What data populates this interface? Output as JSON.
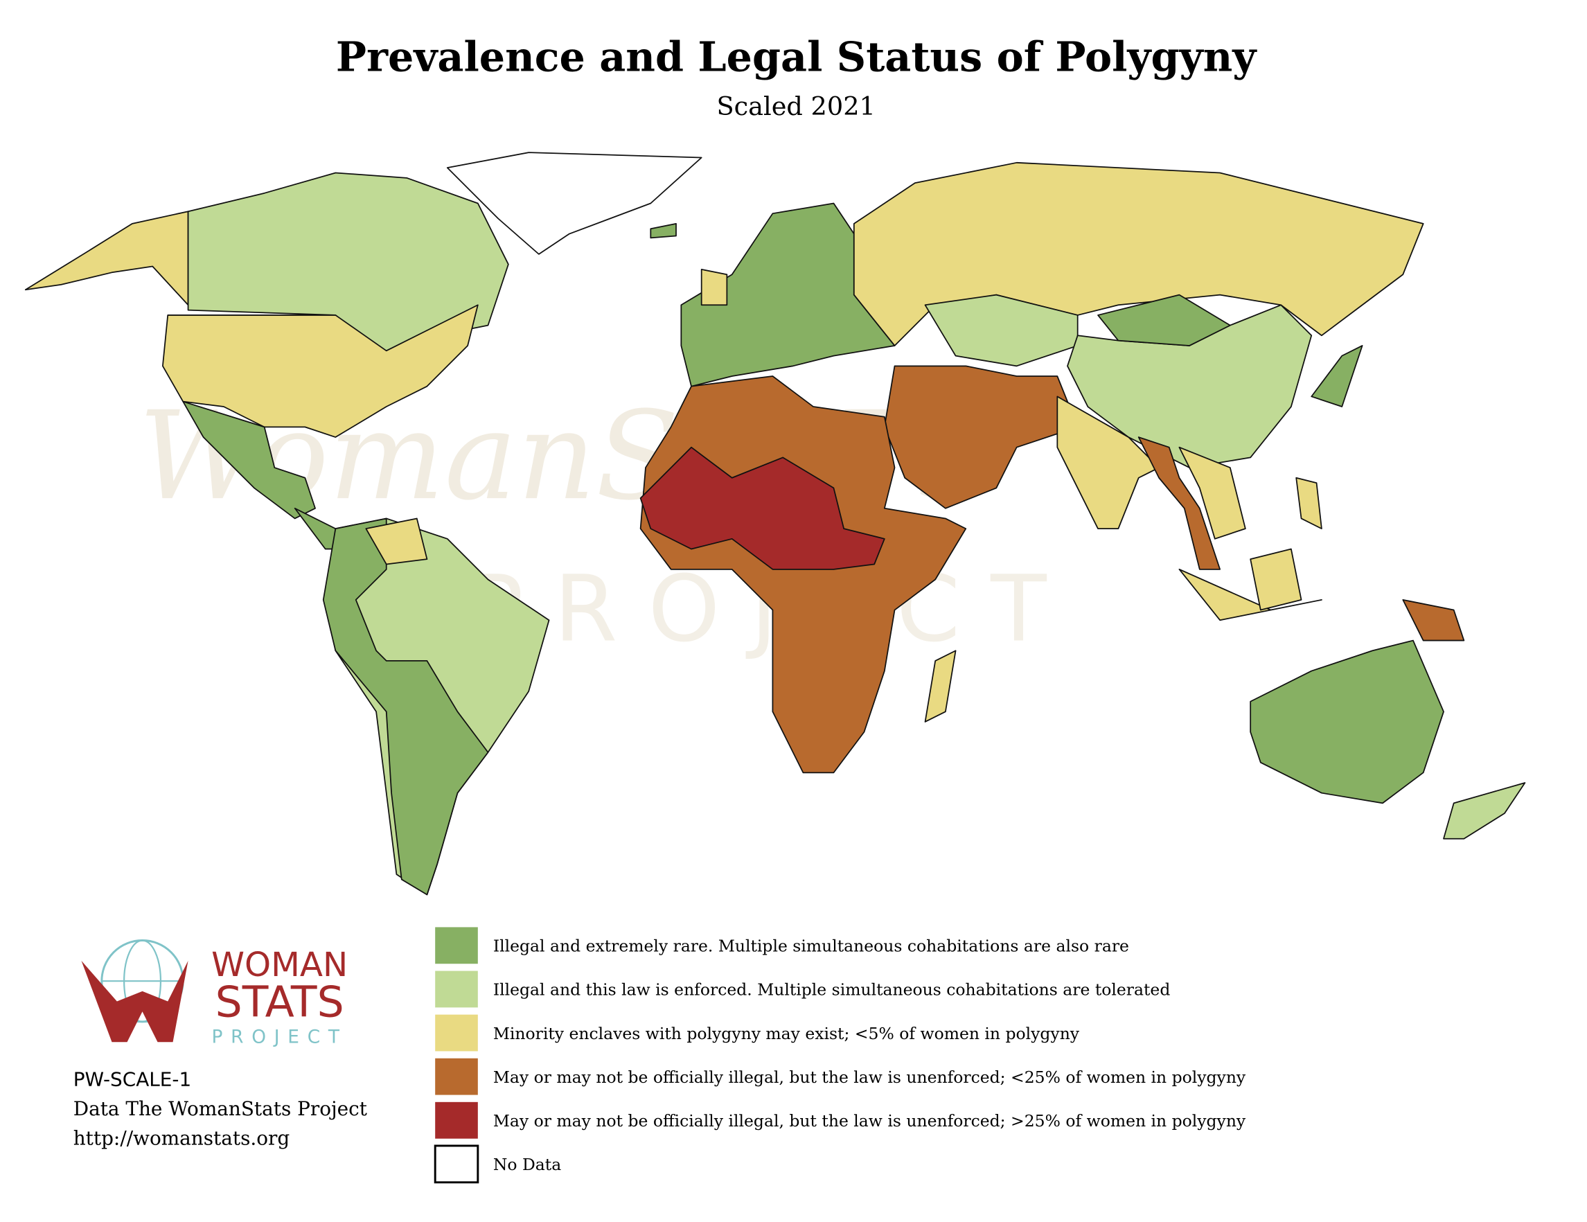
{
  "header": {
    "title": "Prevalence and Legal Status of Polygyny",
    "subtitle": "Scaled 2021"
  },
  "watermark": {
    "main": "WomanSTATS",
    "sub": "PROJECT"
  },
  "legend": {
    "items": [
      {
        "label": "Illegal and extremely rare. Multiple simultaneous cohabitations are also rare",
        "color": "#87b063"
      },
      {
        "label": "Illegal and this law is enforced. Multiple simultaneous cohabitations are tolerated",
        "color": "#c0da95"
      },
      {
        "label": "Minority enclaves with polygyny may exist; <5% of women in polygyny",
        "color": "#e9da82"
      },
      {
        "label": "May or may not be officially illegal, but the law is unenforced; <25% of women in polygyny",
        "color": "#b86a2e"
      },
      {
        "label": "May or may not be officially illegal, but the law is unenforced; >25% of women in polygyny",
        "color": "#a52a2a"
      },
      {
        "label": "No Data",
        "color": "#ffffff"
      }
    ]
  },
  "logo": {
    "line1": "WOMAN",
    "line2": "STATS",
    "line3": "PROJECT"
  },
  "footer": {
    "code": "PW-SCALE-1",
    "credit": "Data The WomanStats Project",
    "url": "http://womanstats.org"
  }
}
